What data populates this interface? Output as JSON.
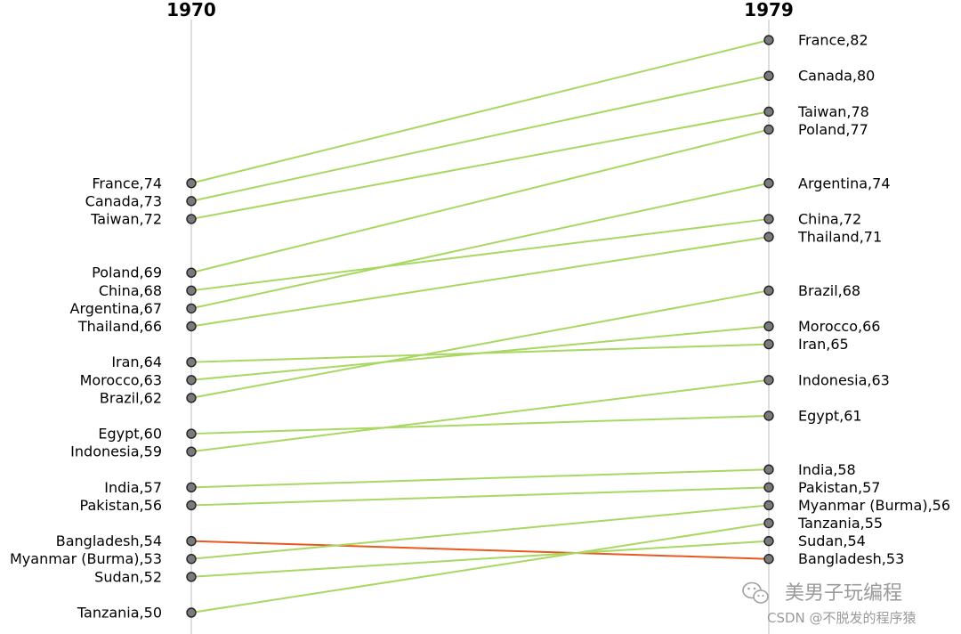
{
  "chart_data": {
    "type": "line",
    "chart_kind": "slope",
    "x": [
      "1970",
      "1979"
    ],
    "ylim": [
      50,
      82
    ],
    "grid": false,
    "colors": {
      "increase": "#a8d862",
      "decrease": "#e8591f",
      "marker_fill": "#7a7a7a",
      "marker_edge": "#222222",
      "axis_line": "#c8c8c8"
    },
    "series": [
      {
        "name": "France",
        "values": [
          74,
          82
        ]
      },
      {
        "name": "Canada",
        "values": [
          73,
          80
        ]
      },
      {
        "name": "Taiwan",
        "values": [
          72,
          78
        ]
      },
      {
        "name": "Poland",
        "values": [
          69,
          77
        ]
      },
      {
        "name": "China",
        "values": [
          68,
          72
        ]
      },
      {
        "name": "Argentina",
        "values": [
          67,
          74
        ]
      },
      {
        "name": "Thailand",
        "values": [
          66,
          71
        ]
      },
      {
        "name": "Iran",
        "values": [
          64,
          65
        ]
      },
      {
        "name": "Morocco",
        "values": [
          63,
          66
        ]
      },
      {
        "name": "Brazil",
        "values": [
          62,
          68
        ]
      },
      {
        "name": "Egypt",
        "values": [
          60,
          61
        ]
      },
      {
        "name": "Indonesia",
        "values": [
          59,
          63
        ]
      },
      {
        "name": "India",
        "values": [
          57,
          58
        ]
      },
      {
        "name": "Pakistan",
        "values": [
          56,
          57
        ]
      },
      {
        "name": "Bangladesh",
        "values": [
          54,
          53
        ]
      },
      {
        "name": "Myanmar (Burma)",
        "values": [
          53,
          56
        ]
      },
      {
        "name": "Sudan",
        "values": [
          52,
          54
        ]
      },
      {
        "name": "Tanzania",
        "values": [
          50,
          55
        ]
      }
    ]
  },
  "watermark": {
    "main": "美男子玩编程",
    "sub": "CSDN @不脱发的程序猿",
    "icon": "wechat-icon"
  }
}
